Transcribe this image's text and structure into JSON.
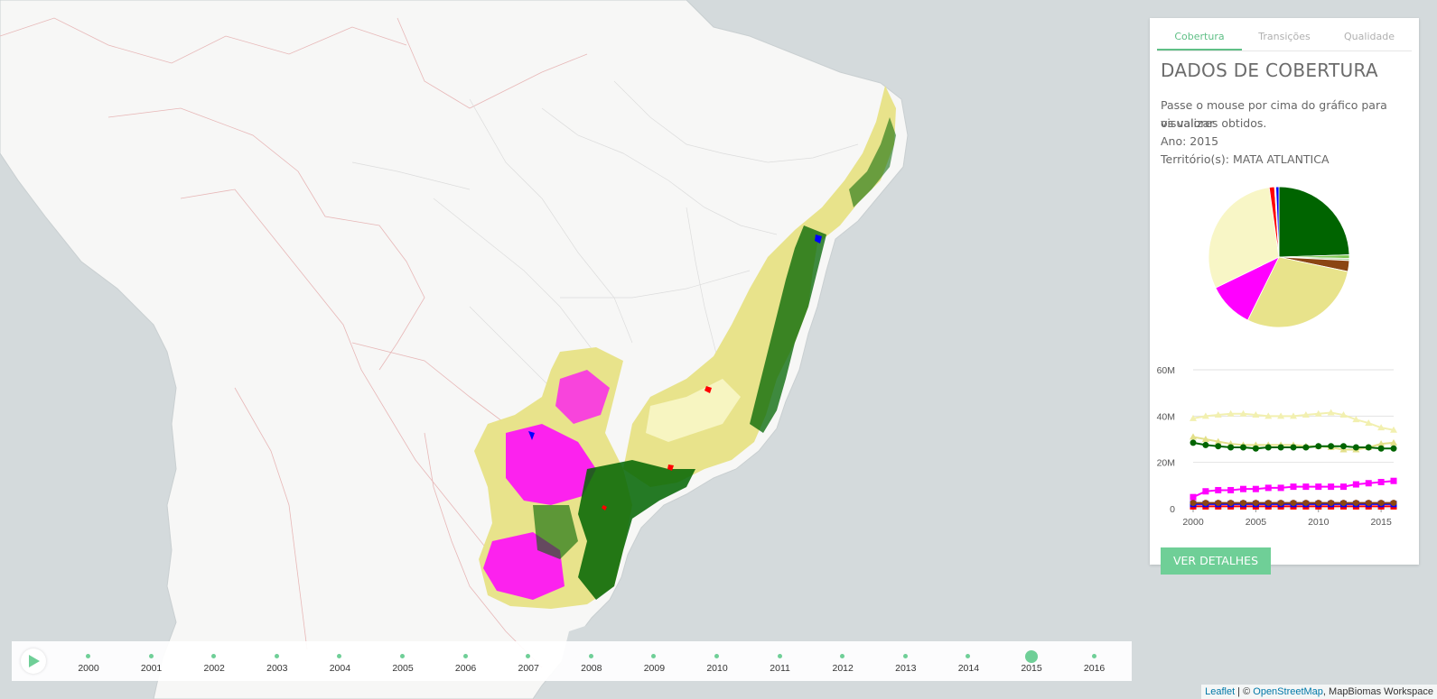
{
  "tabs": [
    {
      "label": "Cobertura",
      "active": true
    },
    {
      "label": "Transições",
      "active": false
    },
    {
      "label": "Qualidade",
      "active": false
    }
  ],
  "panel": {
    "title": "DADOS DE COBERTURA",
    "instructions_line1": "Passe o mouse por cima do gráfico para visualizar",
    "instructions_line2": "os valores obtidos.",
    "year_line": "Ano: 2015",
    "territory_line": "Território(s): MATA ATLANTICA",
    "details_button": "VER DETALHES"
  },
  "pie_chart": {
    "type": "pie",
    "slices": [
      {
        "value": 24.5,
        "color": "#006400"
      },
      {
        "value": 0.8,
        "color": "#7ec850"
      },
      {
        "value": 0.5,
        "color": "#b5d6a8"
      },
      {
        "value": 2.5,
        "color": "#8b4513"
      },
      {
        "value": 29.0,
        "color": "#e8e38b"
      },
      {
        "value": 10.5,
        "color": "#ff00ff"
      },
      {
        "value": 30.0,
        "color": "#f8f6c6"
      },
      {
        "value": 1.2,
        "color": "#ff0000"
      },
      {
        "value": 0.3,
        "color": "#ffffff"
      },
      {
        "value": 0.7,
        "color": "#0000ff"
      }
    ]
  },
  "chart_data": {
    "type": "line",
    "x": [
      2000,
      2001,
      2002,
      2003,
      2004,
      2005,
      2006,
      2007,
      2008,
      2009,
      2010,
      2011,
      2012,
      2013,
      2014,
      2015,
      2016
    ],
    "xticks": [
      "2000",
      "2005",
      "2010",
      "2015"
    ],
    "yticks": [
      "0",
      "20M",
      "40M",
      "60M"
    ],
    "ylim": [
      0,
      60000000
    ],
    "series": [
      {
        "color": "#f2f0b0",
        "marker": "triangle",
        "values": [
          39000000,
          40000000,
          40500000,
          41000000,
          41000000,
          40500000,
          40000000,
          40000000,
          40000000,
          40500000,
          41000000,
          41500000,
          40500000,
          38500000,
          37000000,
          35000000,
          34000000
        ]
      },
      {
        "color": "#e3e08a",
        "marker": "triangle",
        "values": [
          31000000,
          30000000,
          29000000,
          28000000,
          27500000,
          27500000,
          27500000,
          27500000,
          27500000,
          27000000,
          27000000,
          26500000,
          25500000,
          25500000,
          26500000,
          28000000,
          28500000
        ]
      },
      {
        "color": "#006400",
        "marker": "circle",
        "values": [
          28500000,
          27500000,
          27000000,
          26500000,
          26500000,
          26000000,
          26500000,
          26500000,
          26500000,
          26500000,
          27000000,
          27000000,
          27000000,
          26500000,
          26500000,
          26000000,
          26000000
        ]
      },
      {
        "color": "#ff00ff",
        "marker": "square",
        "values": [
          5000000,
          7500000,
          8000000,
          8000000,
          8500000,
          8500000,
          9000000,
          9000000,
          9500000,
          9500000,
          9500000,
          9500000,
          9500000,
          10500000,
          11000000,
          11500000,
          12000000
        ]
      },
      {
        "color": "#ff0000",
        "marker": "square",
        "values": [
          1000000,
          1000000,
          1000000,
          1000000,
          1000000,
          1000000,
          1000000,
          1000000,
          1000000,
          1000000,
          1000000,
          1000000,
          1000000,
          1000000,
          1000000,
          1000000,
          1000000
        ]
      },
      {
        "color": "#0000ff",
        "marker": "square",
        "values": [
          2000000,
          2000000,
          2000000,
          2000000,
          2000000,
          2000000,
          2000000,
          2000000,
          2000000,
          2000000,
          2000000,
          2000000,
          2000000,
          2000000,
          2000000,
          2000000,
          2000000
        ]
      },
      {
        "color": "#8b4513",
        "marker": "circle",
        "values": [
          2500000,
          2500000,
          2500000,
          2500000,
          2500000,
          2500000,
          2500000,
          2500000,
          2500000,
          2500000,
          2500000,
          2500000,
          2500000,
          2500000,
          2500000,
          2500000,
          2500000
        ]
      }
    ]
  },
  "timeline": {
    "years": [
      "2000",
      "2001",
      "2002",
      "2003",
      "2004",
      "2005",
      "2006",
      "2007",
      "2008",
      "2009",
      "2010",
      "2011",
      "2012",
      "2013",
      "2014",
      "2015",
      "2016"
    ],
    "selected": "2015"
  },
  "attribution": {
    "leaflet": "Leaflet",
    "separator": " | © ",
    "osm": "OpenStreetMap",
    "rest": ", MapBiomas Workspace"
  },
  "colors": {
    "accent": "#6fcf97",
    "ocean": "#d4dadc",
    "land": "#f7f7f6"
  }
}
